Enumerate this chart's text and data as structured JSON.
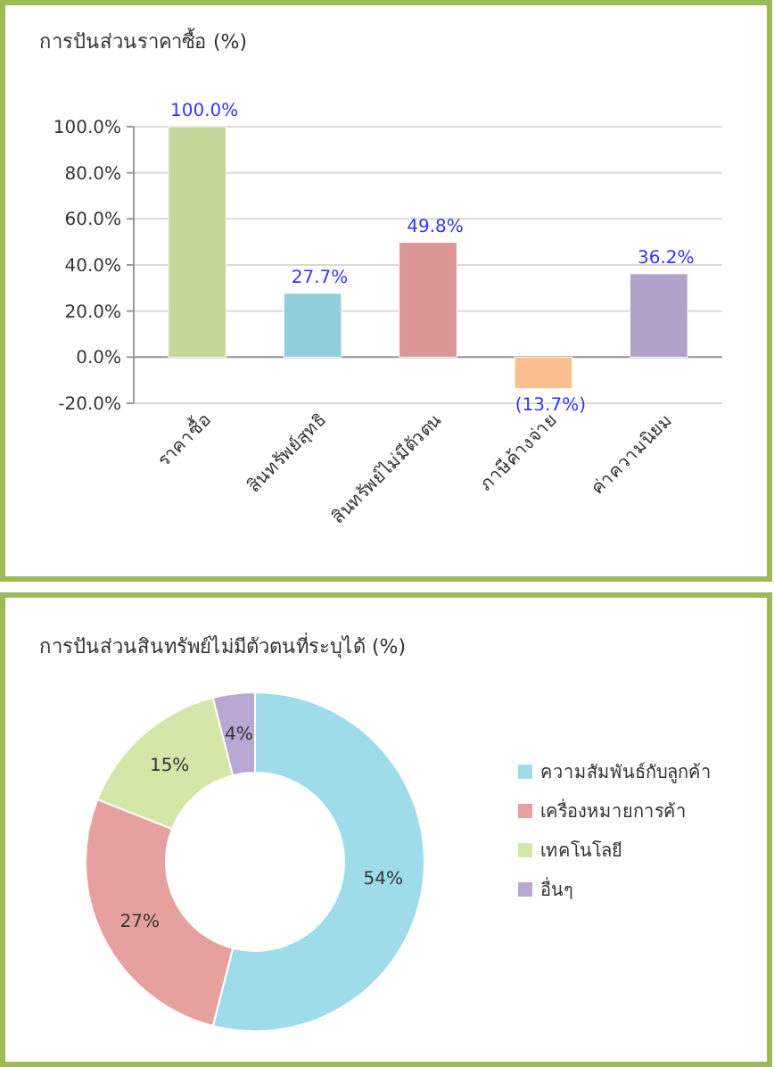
{
  "chart_data": [
    {
      "type": "bar",
      "title": "การปันส่วนราคาซื้อ (%)",
      "categories": [
        "ราคาซื้อ",
        "สินทรัพย์สุทธิ",
        "สินทรัพย์ไม่มีตัวตน",
        "ภาษีค้างจ่าย",
        "ค่าความนิยม"
      ],
      "values": [
        100,
        27.7,
        49.8,
        -13.7,
        36.2
      ],
      "colors": [
        "#c4d79b",
        "#92cddc",
        "#da9694",
        "#fabf8f",
        "#b1a0c7"
      ],
      "value_labels": [
        "100.0%",
        "27.7%",
        "49.8%",
        "(13.7%)",
        "36.2%"
      ],
      "ylim": [
        -20,
        100
      ],
      "yticks": [
        {
          "value": -20,
          "label": "-20.0%"
        },
        {
          "value": 0,
          "label": "0.0%"
        },
        {
          "value": 20,
          "label": "20.0%"
        },
        {
          "value": 40,
          "label": "40.0%"
        },
        {
          "value": 60,
          "label": "60.0%"
        },
        {
          "value": 80,
          "label": "80.0%"
        },
        {
          "value": 100,
          "label": "100.0%"
        }
      ],
      "grid": "y"
    },
    {
      "type": "donut",
      "title": "การปันส่วนสินทรัพย์ไม่มีตัวตนที่ระบุได้ (%)",
      "categories": [
        "ความสัมพันธ์กับลูกค้า",
        "เครื่องหมายการค้า",
        "เทคโนโลยี",
        "อื่นๆ"
      ],
      "values": [
        54,
        27,
        15,
        4
      ],
      "colors": [
        "#9fdcea",
        "#e6a19e",
        "#d4e6a8",
        "#b9a6d3"
      ],
      "value_labels": [
        "54%",
        "27%",
        "15%",
        "4%"
      ],
      "legend": "right"
    }
  ]
}
